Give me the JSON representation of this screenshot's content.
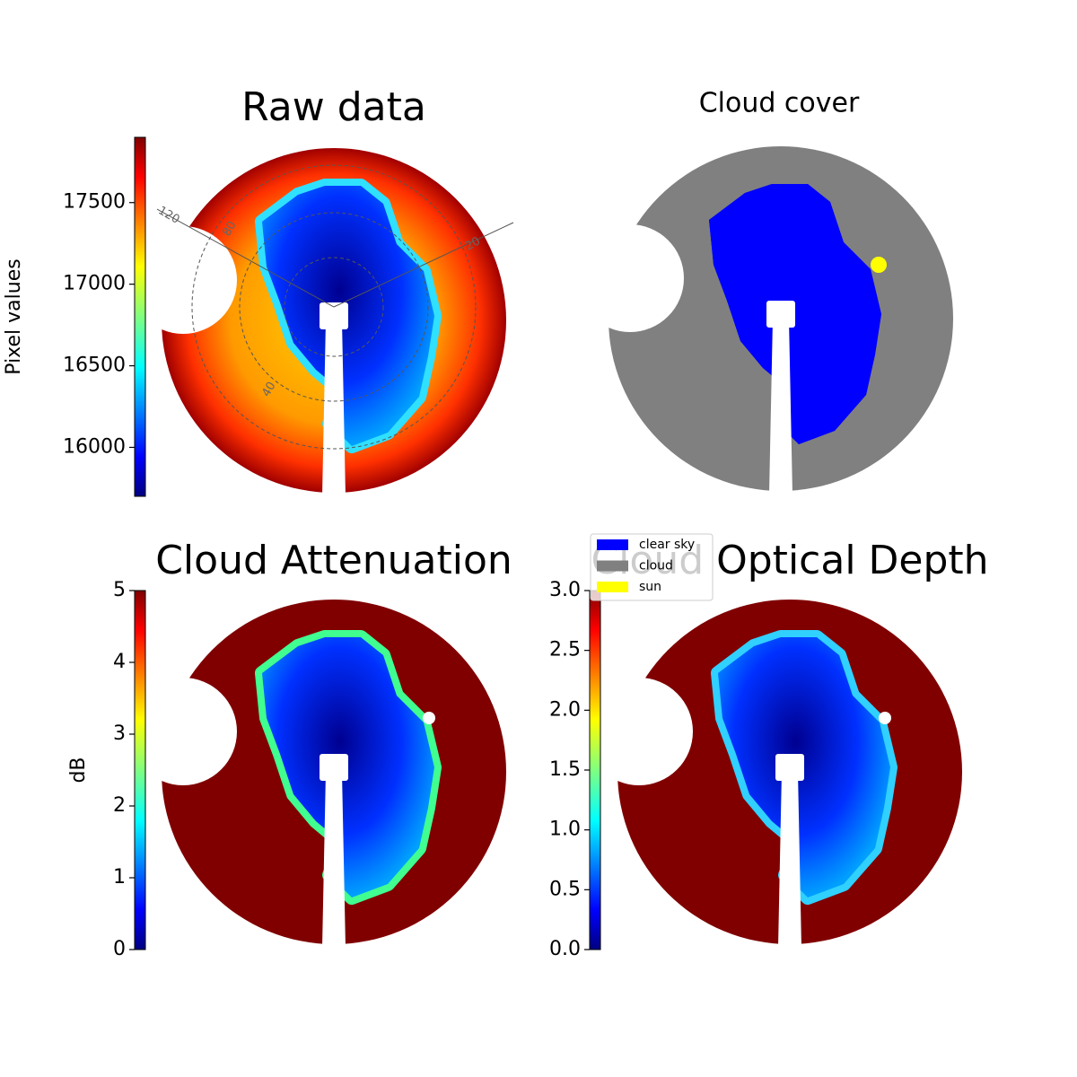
{
  "chart_data": [
    {
      "type": "image",
      "title": "Raw data",
      "colorbar": {
        "label": "Pixel values",
        "colormap": "jet",
        "lim": [
          15700,
          17900
        ],
        "ticks": [
          16000,
          16500,
          17000,
          17500
        ]
      },
      "polar_labels": [
        "120",
        "80",
        "20",
        "40"
      ]
    },
    {
      "type": "image",
      "title": "Cloud cover",
      "legend": [
        {
          "name": "clear sky",
          "color": "#0000ff"
        },
        {
          "name": "cloud",
          "color": "#808080"
        },
        {
          "name": "sun",
          "color": "#ffff00"
        }
      ]
    },
    {
      "type": "image",
      "title": "Cloud Attenuation",
      "colorbar": {
        "label": "dB",
        "colormap": "jet",
        "lim": [
          0,
          5
        ],
        "ticks": [
          0,
          1,
          2,
          3,
          4,
          5
        ]
      }
    },
    {
      "type": "image",
      "title": "Cloud Optical Depth",
      "colorbar": {
        "colormap": "jet",
        "lim": [
          0,
          3
        ],
        "ticks": [
          {
            "value": 0,
            "label": "0.0"
          },
          {
            "value": 0.5,
            "label": "0.5"
          },
          {
            "value": 1,
            "label": "1.0"
          },
          {
            "value": 1.5,
            "label": "1.5"
          },
          {
            "value": 2,
            "label": "2.0"
          },
          {
            "value": 2.5,
            "label": "2.5"
          },
          {
            "value": 3,
            "label": "3.0"
          }
        ]
      }
    }
  ]
}
